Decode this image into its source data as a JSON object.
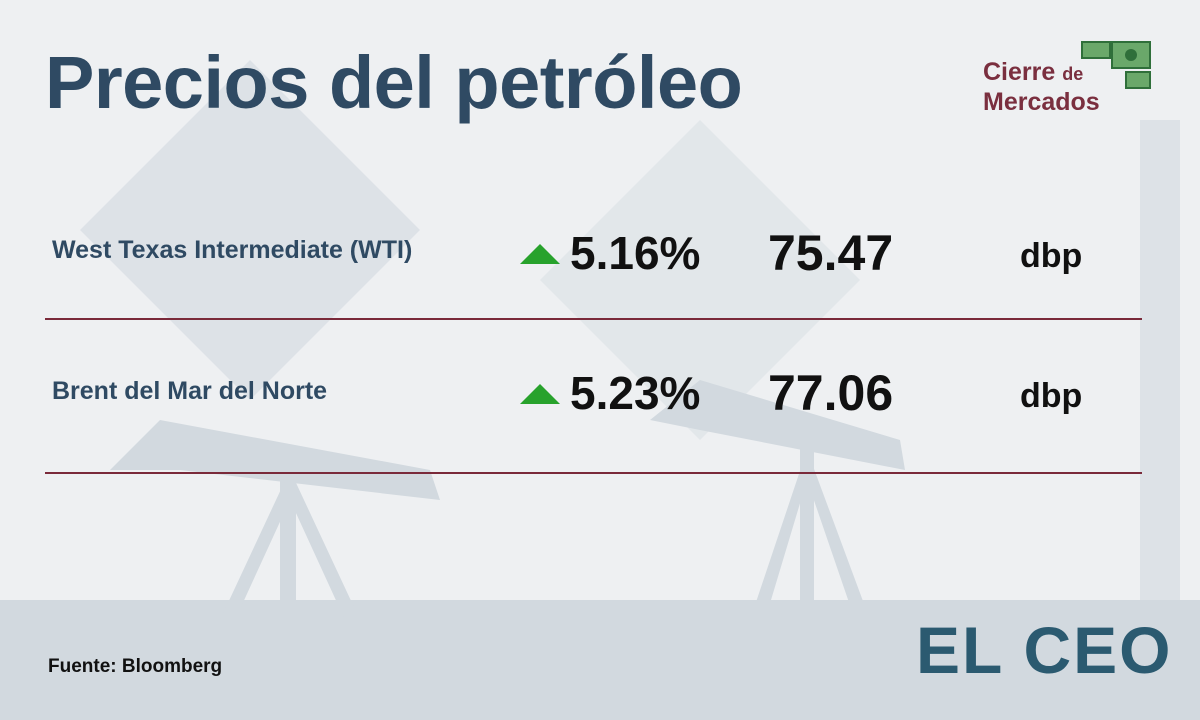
{
  "header": {
    "title": "Precios del petróleo",
    "badge": {
      "line1": "Cierre",
      "small": "de",
      "line2": "Mercados"
    }
  },
  "table": {
    "rows": [
      {
        "name": "West Texas Intermediate (WTI)",
        "change": "5.16%",
        "price": "75.47",
        "unit": "dbp"
      },
      {
        "name": "Brent del Mar del Norte",
        "change": "5.23%",
        "price": "77.06",
        "unit": "dbp"
      }
    ]
  },
  "footer": {
    "source": "Fuente: Bloomberg",
    "logo": "EL CEO"
  }
}
